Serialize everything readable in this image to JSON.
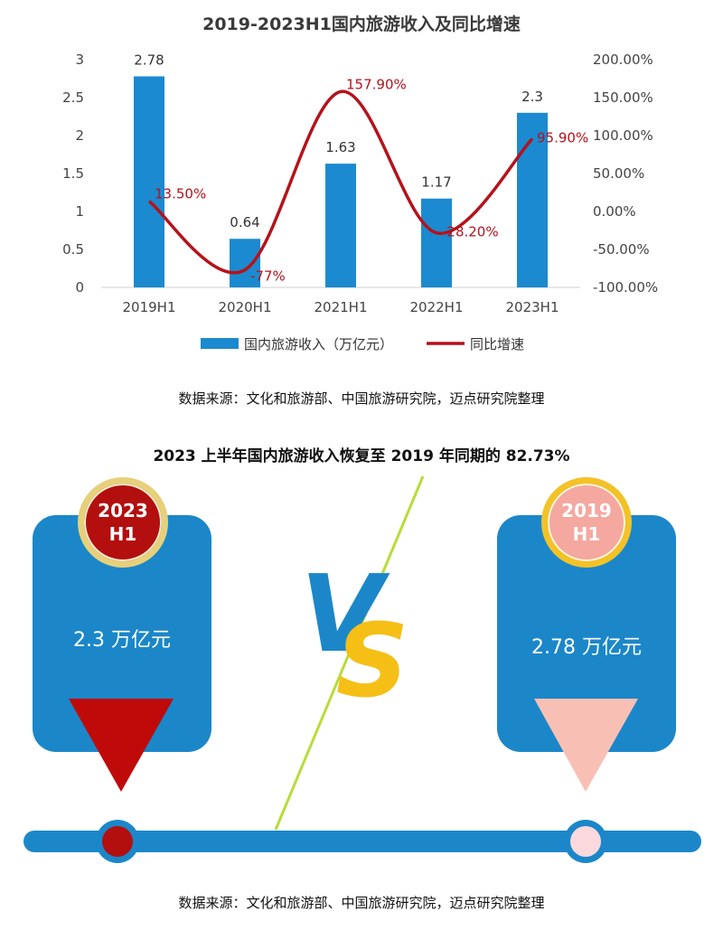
{
  "chart_data": {
    "type": "bar+line",
    "title": "2019-2023H1国内旅游收入及同比增速",
    "categories": [
      "2019H1",
      "2020H1",
      "2021H1",
      "2022H1",
      "2023H1"
    ],
    "series": [
      {
        "name": "国内旅游收入（万亿元）",
        "type": "bar",
        "axis": "left",
        "values": [
          2.78,
          0.64,
          1.63,
          1.17,
          2.3
        ],
        "labels": [
          "2.78",
          "0.64",
          "1.63",
          "1.17",
          "2.3"
        ],
        "color": "#1b8ad0"
      },
      {
        "name": "同比增速",
        "type": "line",
        "axis": "right",
        "values": [
          13.5,
          -77,
          157.9,
          -28.2,
          95.9
        ],
        "labels": [
          "13.50%",
          "-77%",
          "157.90%",
          "-28.20%",
          "95.90%"
        ],
        "color": "#b5121b"
      }
    ],
    "left_axis": {
      "ylim": [
        0,
        3
      ],
      "ticks": [
        "0",
        "0.5",
        "1",
        "1.5",
        "2",
        "2.5",
        "3"
      ]
    },
    "right_axis": {
      "ylim": [
        -100,
        200
      ],
      "ticks": [
        "-100.00%",
        "-50.00%",
        "0.00%",
        "50.00%",
        "100.00%",
        "150.00%",
        "200.00%"
      ]
    },
    "grid": false,
    "legend_position": "bottom"
  },
  "source_top": "数据来源：文化和旅游部、中国旅游研究院，迈点研究院整理",
  "comparison": {
    "title": "2023 上半年国内旅游收入恢复至 2019 年同期的 82.73%",
    "left": {
      "badge_line1": "2023",
      "badge_line2": "H1",
      "value": "2.3 万亿元",
      "color": "#b30f0f"
    },
    "right": {
      "badge_line1": "2019",
      "badge_line2": "H1",
      "value": "2.78 万亿元",
      "color": "#f4a8a0"
    },
    "vs_letters": [
      "V",
      "S"
    ]
  },
  "source_bottom": "数据来源：文化和旅游部、中国旅游研究院，迈点研究院整理"
}
